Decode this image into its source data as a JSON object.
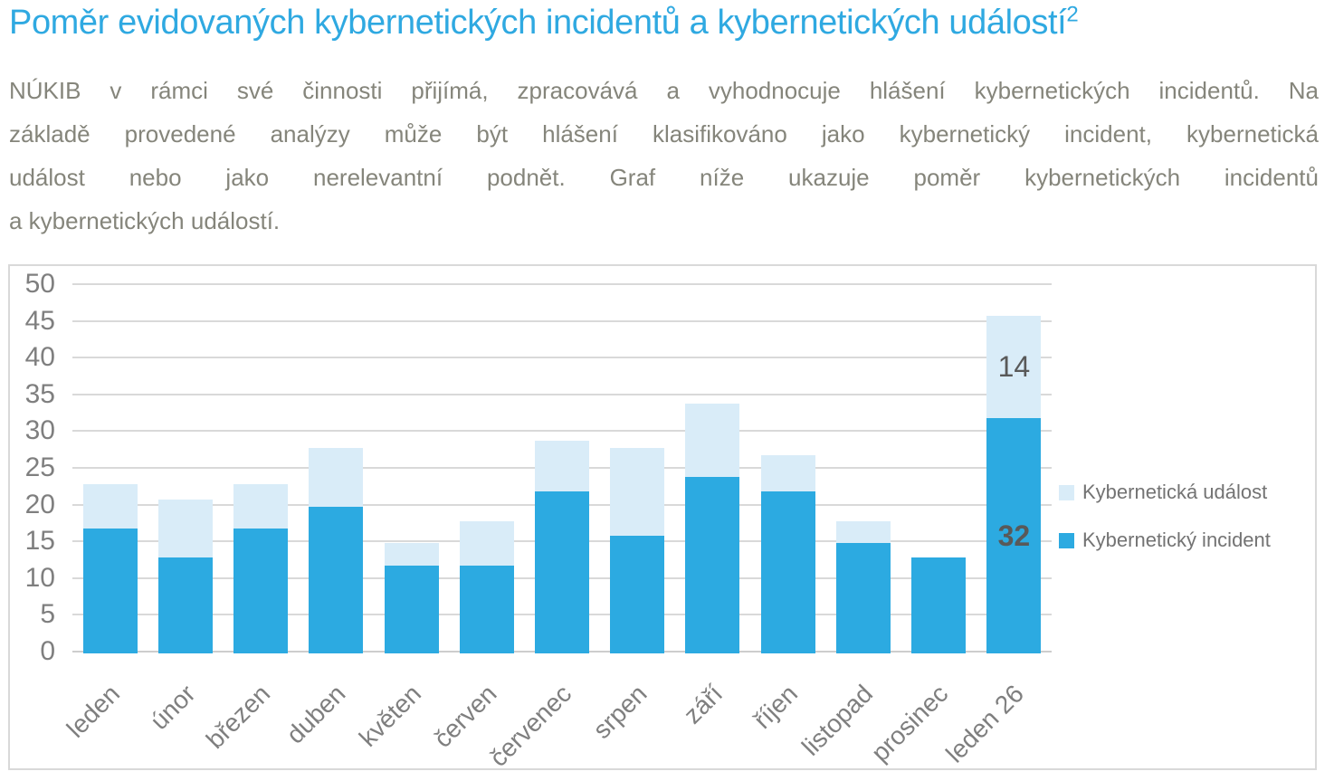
{
  "header": {
    "title": "Poměr evidovaných kybernetických incidentů a kybernetických událostí",
    "footnote_marker": "2"
  },
  "paragraph": {
    "lines": [
      "NÚKIB v rámci své činnosti přijímá, zpracovává a vyhodnocuje hlášení kybernetických incidentů. Na",
      "základě provedené analýzy může být hlášení klasifikováno jako kybernetický incident, kybernetická",
      "událost nebo jako nerelevantní podnět. Graf níže ukazuje poměr kybernetických incidentů",
      "a kybernetických událostí."
    ]
  },
  "colors": {
    "title": "#2FA9E1",
    "incident": "#2CAAE1",
    "event": "#D9ECF8",
    "body_text": "#85857B",
    "axis_text": "#7F7F7F",
    "data_label": "#595959",
    "gridline": "#D9D9D9",
    "axis_line": "#CDCDCD",
    "border": "#D9D9D9",
    "legend_text": "#737373"
  },
  "chart_data": {
    "type": "bar",
    "stacked": true,
    "grid": true,
    "legend_position": "right",
    "categories": [
      "leden",
      "únor",
      "březen",
      "duben",
      "květen",
      "červen",
      "červenec",
      "srpen",
      "září",
      "říjen",
      "listopad",
      "prosinec",
      "leden 26"
    ],
    "series": [
      {
        "name": "Kybernetický incident",
        "color_key": "incident",
        "values": [
          17,
          13,
          17,
          20,
          12,
          12,
          22,
          16,
          24,
          22,
          15,
          13,
          32
        ]
      },
      {
        "name": "Kybernetická událost",
        "color_key": "event",
        "values": [
          6,
          8,
          6,
          8,
          3,
          6,
          7,
          12,
          10,
          5,
          3,
          0,
          14
        ]
      }
    ],
    "totals": [
      23,
      21,
      23,
      28,
      15,
      18,
      29,
      28,
      34,
      27,
      18,
      13,
      46
    ],
    "data_labels": [
      {
        "category_index": 12,
        "series_index": 1,
        "text": "14"
      },
      {
        "category_index": 12,
        "series_index": 0,
        "text": "32"
      }
    ],
    "y_axis": {
      "min": 0,
      "max": 50,
      "step": 5,
      "tick_labels": [
        "0",
        "5",
        "10",
        "15",
        "20",
        "25",
        "30",
        "35",
        "40",
        "45",
        "50"
      ]
    },
    "legend_items": [
      {
        "label": "Kybernetická událost",
        "color_key": "event"
      },
      {
        "label": "Kybernetický incident",
        "color_key": "incident"
      }
    ]
  }
}
